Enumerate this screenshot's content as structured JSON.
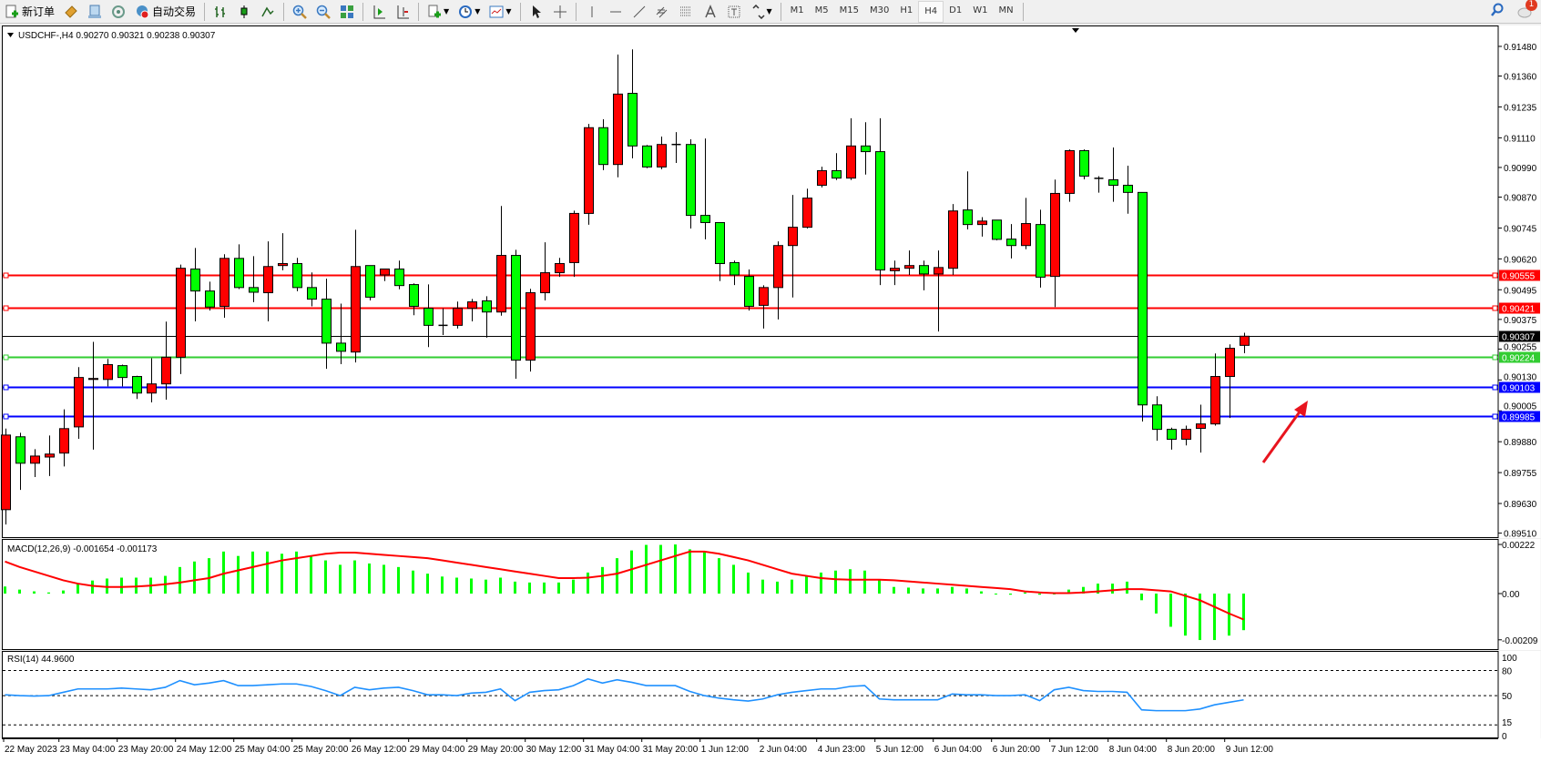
{
  "toolbar": {
    "new_order_label": "新订单",
    "auto_trading_label": "自动交易",
    "timeframes": [
      "M1",
      "M5",
      "M15",
      "M30",
      "H1",
      "H4",
      "D1",
      "W1",
      "MN"
    ],
    "active_timeframe": "H4",
    "notification_count": "1"
  },
  "chart": {
    "header": "USDCHF-,H4  0.90270 0.90321 0.90238 0.90307",
    "colors": {
      "up": "#ff0000",
      "down": "#00ff00",
      "wick": "#000000"
    },
    "price_ticks": [
      "0.91480",
      "0.91360",
      "0.91235",
      "0.91110",
      "0.90990",
      "0.90870",
      "0.90745",
      "0.90620",
      "0.90495",
      "0.90375",
      "0.90255",
      "0.90130",
      "0.90005",
      "0.89880",
      "0.89755",
      "0.89630",
      "0.89510"
    ],
    "hlines": [
      {
        "price": "0.90555",
        "color": "#ff0000"
      },
      {
        "price": "0.90421",
        "color": "#ff0000"
      },
      {
        "price": "0.90307",
        "color": "#000000",
        "bid": true
      },
      {
        "price": "0.90224",
        "color": "#32cd32"
      },
      {
        "price": "0.90103",
        "color": "#0000ff"
      },
      {
        "price": "0.89985",
        "color": "#0000ff"
      }
    ],
    "time_labels": [
      "22 May 2023",
      "23 May 04:00",
      "23 May 20:00",
      "24 May 12:00",
      "25 May 04:00",
      "25 May 20:00",
      "26 May 12:00",
      "29 May 04:00",
      "29 May 20:00",
      "30 May 12:00",
      "31 May 04:00",
      "31 May 20:00",
      "1 Jun 12:00",
      "2 Jun 04:00",
      "4 Jun 23:00",
      "5 Jun 12:00",
      "6 Jun 04:00",
      "6 Jun 20:00",
      "7 Jun 12:00",
      "8 Jun 04:00",
      "8 Jun 20:00",
      "9 Jun 12:00"
    ],
    "annotation_arrow_color": "#e8141e"
  },
  "chart_data": {
    "type": "candlestick",
    "symbol": "USDCHF-",
    "timeframe": "H4",
    "ylim": [
      0.8951,
      0.9148
    ],
    "ohlc": [
      [
        0.89605,
        0.89933,
        0.89545,
        0.89907
      ],
      [
        0.899,
        0.89916,
        0.89685,
        0.89793
      ],
      [
        0.89793,
        0.8985,
        0.89737,
        0.89822
      ],
      [
        0.89818,
        0.89905,
        0.89741,
        0.8983
      ],
      [
        0.89834,
        0.90011,
        0.8978,
        0.89933
      ],
      [
        0.8994,
        0.90182,
        0.89892,
        0.9014
      ],
      [
        0.90132,
        0.90284,
        0.89848,
        0.90136
      ],
      [
        0.90132,
        0.90215,
        0.90104,
        0.90192
      ],
      [
        0.90188,
        0.90192,
        0.90104,
        0.9014
      ],
      [
        0.90144,
        0.90147,
        0.90053,
        0.90077
      ],
      [
        0.90077,
        0.90218,
        0.90039,
        0.90114
      ],
      [
        0.90114,
        0.90366,
        0.9005,
        0.90222
      ],
      [
        0.90222,
        0.90597,
        0.90154,
        0.90582
      ],
      [
        0.90579,
        0.90664,
        0.90367,
        0.9049
      ],
      [
        0.9049,
        0.90528,
        0.90411,
        0.90425
      ],
      [
        0.90428,
        0.90639,
        0.90382,
        0.90622
      ],
      [
        0.90622,
        0.90679,
        0.90498,
        0.90504
      ],
      [
        0.90504,
        0.90631,
        0.90445,
        0.90485
      ],
      [
        0.90483,
        0.90691,
        0.90367,
        0.90589
      ],
      [
        0.90593,
        0.90724,
        0.90574,
        0.90601
      ],
      [
        0.90601,
        0.90624,
        0.90489,
        0.90504
      ],
      [
        0.90504,
        0.90565,
        0.90428,
        0.90457
      ],
      [
        0.90457,
        0.9054,
        0.90175,
        0.90279
      ],
      [
        0.90279,
        0.90439,
        0.90194,
        0.90246
      ],
      [
        0.90243,
        0.90738,
        0.90201,
        0.90589
      ],
      [
        0.90593,
        0.90593,
        0.90452,
        0.90465
      ],
      [
        0.90555,
        0.90579,
        0.9053,
        0.90579
      ],
      [
        0.90579,
        0.90613,
        0.90497,
        0.90512
      ],
      [
        0.90516,
        0.90521,
        0.90392,
        0.90428
      ],
      [
        0.9042,
        0.90517,
        0.90263,
        0.90351
      ],
      [
        0.90351,
        0.9042,
        0.90312,
        0.90351
      ],
      [
        0.90351,
        0.90447,
        0.90338,
        0.9042
      ],
      [
        0.9042,
        0.90458,
        0.90367,
        0.90446
      ],
      [
        0.9045,
        0.90469,
        0.90301,
        0.90405
      ],
      [
        0.90405,
        0.90834,
        0.9039,
        0.90634
      ],
      [
        0.90634,
        0.90657,
        0.90135,
        0.9021
      ],
      [
        0.9021,
        0.90499,
        0.90164,
        0.90483
      ],
      [
        0.90483,
        0.90687,
        0.90452,
        0.90564
      ],
      [
        0.90564,
        0.90624,
        0.90547,
        0.90601
      ],
      [
        0.90605,
        0.90815,
        0.90547,
        0.90804
      ],
      [
        0.90804,
        0.91166,
        0.90758,
        0.91151
      ],
      [
        0.91151,
        0.91185,
        0.90979,
        0.91002
      ],
      [
        0.91002,
        0.91447,
        0.9095,
        0.91287
      ],
      [
        0.9129,
        0.91468,
        0.91027,
        0.91077
      ],
      [
        0.91077,
        0.91081,
        0.90987,
        0.90992
      ],
      [
        0.90992,
        0.91115,
        0.90983,
        0.91083
      ],
      [
        0.91083,
        0.91133,
        0.91008,
        0.91083
      ],
      [
        0.91083,
        0.91104,
        0.90743,
        0.90796
      ],
      [
        0.90796,
        0.91107,
        0.90699,
        0.90767
      ],
      [
        0.90767,
        0.90767,
        0.9053,
        0.90601
      ],
      [
        0.90605,
        0.90613,
        0.90514,
        0.90555
      ],
      [
        0.90549,
        0.90577,
        0.90411,
        0.90428
      ],
      [
        0.90432,
        0.90513,
        0.90338,
        0.90504
      ],
      [
        0.90504,
        0.90691,
        0.90375,
        0.90674
      ],
      [
        0.90674,
        0.90879,
        0.90464,
        0.90748
      ],
      [
        0.90748,
        0.90904,
        0.90743,
        0.90866
      ],
      [
        0.90918,
        0.90993,
        0.90909,
        0.90977
      ],
      [
        0.90977,
        0.91048,
        0.90939,
        0.90947
      ],
      [
        0.90947,
        0.91189,
        0.90939,
        0.91077
      ],
      [
        0.91077,
        0.91173,
        0.90961,
        0.91054
      ],
      [
        0.91054,
        0.91189,
        0.90514,
        0.90575
      ],
      [
        0.90572,
        0.90613,
        0.90514,
        0.90582
      ],
      [
        0.90582,
        0.90654,
        0.90555,
        0.90593
      ],
      [
        0.90593,
        0.90613,
        0.90493,
        0.90559
      ],
      [
        0.90559,
        0.90654,
        0.90326,
        0.90585
      ],
      [
        0.90582,
        0.90842,
        0.90555,
        0.90814
      ],
      [
        0.90818,
        0.90974,
        0.90739,
        0.90759
      ],
      [
        0.90759,
        0.90789,
        0.9071,
        0.90773
      ],
      [
        0.90777,
        0.90777,
        0.90695,
        0.90699
      ],
      [
        0.907,
        0.90761,
        0.90622,
        0.90674
      ],
      [
        0.90674,
        0.90867,
        0.90659,
        0.90763
      ],
      [
        0.90759,
        0.90819,
        0.90504,
        0.90546
      ],
      [
        0.90549,
        0.90941,
        0.90425,
        0.90885
      ],
      [
        0.90885,
        0.91063,
        0.90851,
        0.91058
      ],
      [
        0.91058,
        0.91063,
        0.90942,
        0.90955
      ],
      [
        0.90946,
        0.90955,
        0.90888,
        0.90946
      ],
      [
        0.9094,
        0.91071,
        0.90851,
        0.90918
      ],
      [
        0.90918,
        0.90997,
        0.90803,
        0.90889
      ],
      [
        0.90889,
        0.90889,
        0.89962,
        0.90029
      ],
      [
        0.90029,
        0.90064,
        0.89884,
        0.8993
      ],
      [
        0.8993,
        0.89937,
        0.89848,
        0.8989
      ],
      [
        0.8989,
        0.89945,
        0.89865,
        0.8993
      ],
      [
        0.89934,
        0.9003,
        0.89836,
        0.89952
      ],
      [
        0.89952,
        0.90237,
        0.89945,
        0.90144
      ],
      [
        0.90144,
        0.90274,
        0.89976,
        0.90258
      ],
      [
        0.9027,
        0.90321,
        0.90238,
        0.90307
      ]
    ],
    "macd": {
      "label": "MACD(12,26,9) -0.001654 -0.001173",
      "ylim": [
        -0.00209,
        0.00222
      ],
      "ticks": [
        "0.00222",
        "0.00",
        "-0.00209"
      ],
      "histogram_color": "#00ff00",
      "signal_color": "#ff0000",
      "histogram": [
        0.00032,
        0.00018,
        0.0001,
        5e-05,
        0.00014,
        0.00045,
        0.00059,
        0.00068,
        0.00072,
        0.00072,
        0.00072,
        0.0008,
        0.0012,
        0.00145,
        0.0016,
        0.0019,
        0.0017,
        0.0019,
        0.0019,
        0.0018,
        0.0019,
        0.0017,
        0.0015,
        0.0013,
        0.0015,
        0.00136,
        0.0013,
        0.0012,
        0.00104,
        0.0009,
        0.00077,
        0.00072,
        0.00068,
        0.00063,
        0.00072,
        0.00054,
        0.0005,
        0.0005,
        0.0005,
        0.00063,
        0.00095,
        0.0012,
        0.0016,
        0.00195,
        0.0022,
        0.0022,
        0.00222,
        0.002,
        0.0019,
        0.0016,
        0.0013,
        0.00095,
        0.00063,
        0.00054,
        0.00063,
        0.0008,
        0.00095,
        0.00104,
        0.0011,
        0.00104,
        0.00063,
        0.0003,
        0.00027,
        0.00023,
        0.00023,
        0.0003,
        0.00023,
        0.0001,
        0.0,
        -5e-05,
        5e-05,
        -5e-05,
        0.0,
        0.00018,
        0.0003,
        0.00045,
        0.00045,
        0.00054,
        -0.0003,
        -0.0009,
        -0.0015,
        -0.0019,
        -0.0021,
        -0.0021,
        -0.0019,
        -0.001654
      ],
      "signal": [
        0.00145,
        0.0012,
        0.001,
        0.0008,
        0.0006,
        0.00045,
        0.00035,
        0.0003,
        0.0003,
        0.00032,
        0.00036,
        0.00042,
        0.0005,
        0.0006,
        0.0007,
        0.0009,
        0.00105,
        0.0012,
        0.00135,
        0.0015,
        0.0016,
        0.0017,
        0.0018,
        0.00185,
        0.00185,
        0.0018,
        0.00175,
        0.0017,
        0.00165,
        0.0016,
        0.0015,
        0.0014,
        0.0013,
        0.0012,
        0.0011,
        0.001,
        0.0009,
        0.0008,
        0.0007,
        0.0007,
        0.00072,
        0.0008,
        0.0009,
        0.0011,
        0.0013,
        0.0015,
        0.0017,
        0.0019,
        0.0019,
        0.0018,
        0.00165,
        0.0015,
        0.0013,
        0.0011,
        0.0009,
        0.0008,
        0.0007,
        0.00065,
        0.00063,
        0.00063,
        0.00063,
        0.0006,
        0.00055,
        0.0005,
        0.00045,
        0.0004,
        0.00035,
        0.0003,
        0.00025,
        0.0002,
        0.0001,
        5e-05,
        2e-05,
        2e-05,
        5e-05,
        0.0001,
        0.00015,
        0.0002,
        0.0002,
        0.00015,
        0.0001,
        -0.0001,
        -0.0003,
        -0.0006,
        -0.0009,
        -0.001173
      ]
    },
    "rsi": {
      "label": "RSI(14) 44.9600",
      "ylim": [
        0,
        100
      ],
      "ticks": [
        "100",
        "80",
        "50",
        "15",
        "0"
      ],
      "levels": [
        80,
        50,
        15
      ],
      "color": "#1e90ff",
      "values": [
        51,
        50,
        49.5,
        50,
        54,
        58,
        58,
        58,
        59,
        58,
        57,
        60,
        68,
        63,
        65,
        68,
        62,
        62,
        63,
        64,
        64,
        61,
        56,
        50,
        60,
        57,
        59,
        60,
        56,
        51,
        51,
        50,
        53,
        54,
        58,
        44,
        54,
        56,
        57,
        62,
        70,
        65,
        69,
        66,
        62,
        62,
        62,
        55,
        50,
        47,
        45,
        43.5,
        46,
        51,
        54,
        56,
        58,
        58,
        61,
        62,
        46,
        45,
        45,
        45,
        45,
        52,
        51,
        51,
        50,
        50,
        51,
        44,
        57,
        60,
        56,
        55,
        55,
        54,
        33,
        32,
        32,
        32,
        34,
        39,
        42,
        44.96
      ]
    }
  }
}
